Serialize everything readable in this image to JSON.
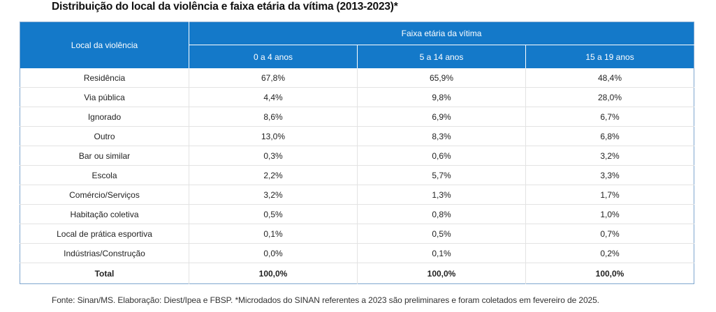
{
  "title": "Distribuição do local da violência e faixa etária da vítima (2013-2023)*",
  "table": {
    "header_local": "Local da violência",
    "header_group": "Faixa etária da vítima",
    "age_groups": [
      "0 a 4 anos",
      "5 a 14 anos",
      "15 a 19 anos"
    ],
    "rows": [
      {
        "local": "Residência",
        "values": [
          "67,8%",
          "65,9%",
          "48,4%"
        ]
      },
      {
        "local": "Via pública",
        "values": [
          "4,4%",
          "9,8%",
          "28,0%"
        ]
      },
      {
        "local": "Ignorado",
        "values": [
          "8,6%",
          "6,9%",
          "6,7%"
        ]
      },
      {
        "local": "Outro",
        "values": [
          "13,0%",
          "8,3%",
          "6,8%"
        ]
      },
      {
        "local": "Bar ou similar",
        "values": [
          "0,3%",
          "0,6%",
          "3,2%"
        ]
      },
      {
        "local": "Escola",
        "values": [
          "2,2%",
          "5,7%",
          "3,3%"
        ]
      },
      {
        "local": "Comércio/Serviços",
        "values": [
          "3,2%",
          "1,3%",
          "1,7%"
        ]
      },
      {
        "local": "Habitação coletiva",
        "values": [
          "0,5%",
          "0,8%",
          "1,0%"
        ]
      },
      {
        "local": "Local de prática esportiva",
        "values": [
          "0,1%",
          "0,5%",
          "0,7%"
        ]
      },
      {
        "local": "Indústrias/Construção",
        "values": [
          "0,0%",
          "0,1%",
          "0,2%"
        ]
      }
    ],
    "total": {
      "local": "Total",
      "values": [
        "100,0%",
        "100,0%",
        "100,0%"
      ]
    }
  },
  "source": "Fonte: Sinan/MS. Elaboração: Diest/Ipea e FBSP. *Microdados do SINAN referentes a 2023 são preliminares e foram coletados em fevereiro de 2025.",
  "colors": {
    "header_blue": "#1479c9",
    "border_blue": "#7ea6cf"
  }
}
